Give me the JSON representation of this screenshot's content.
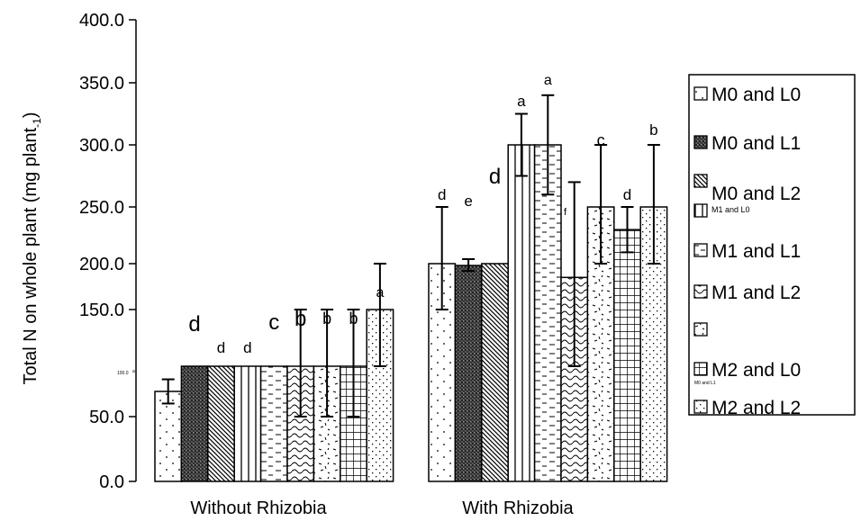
{
  "chart_data": {
    "type": "bar",
    "title": "",
    "xlabel": "",
    "ylabel": "Total N on whole plant (mg plant",
    "ylabel_sub": "-1",
    "ylabel_close": ")",
    "ylim": [
      0,
      400
    ],
    "yticks": [
      "0.0",
      "50.0",
      "150.0",
      "200.0",
      "250.0",
      "300.0",
      "350.0",
      "400.0"
    ],
    "categories": [
      "Without Rhizobia",
      "With Rhizobia"
    ],
    "series": [
      {
        "name": "M0 and L0",
        "values": [
          75,
          200
        ],
        "errors": [
          12,
          50
        ],
        "labels": [
          "",
          "d"
        ],
        "pattern": "dots"
      },
      {
        "name": "M0 and L1",
        "values": [
          100,
          198
        ],
        "errors": [
          0,
          6
        ],
        "labels": [
          "d",
          "e"
        ],
        "pattern": "crosshatch"
      },
      {
        "name": "M0 and L2",
        "values": [
          100,
          200
        ],
        "errors": [
          0,
          0
        ],
        "labels": [
          "d",
          "d"
        ],
        "pattern": "diag"
      },
      {
        "name": "M1 and L0",
        "values": [
          100,
          300
        ],
        "errors": [
          0,
          25
        ],
        "labels": [
          "d",
          "a"
        ],
        "pattern": "vlines"
      },
      {
        "name": "M1 and L1",
        "values": [
          100,
          300
        ],
        "errors": [
          0,
          40
        ],
        "labels": [
          "c",
          "a"
        ],
        "pattern": "dashes"
      },
      {
        "name": "M1 and L2",
        "values": [
          100,
          185
        ],
        "errors": [
          50,
          85
        ],
        "labels": [
          "b",
          ""
        ],
        "pattern": "wave"
      },
      {
        "name": "",
        "values": [
          100,
          250
        ],
        "errors": [
          50,
          50
        ],
        "labels": [
          "b",
          "c"
        ],
        "pattern": "confetti"
      },
      {
        "name": "M2 and L0",
        "values": [
          100,
          230
        ],
        "errors": [
          50,
          20
        ],
        "labels": [
          "b",
          "d"
        ],
        "pattern": "grid"
      },
      {
        "name": "M2 and L2",
        "values": [
          150,
          250
        ],
        "errors": [
          50,
          50
        ],
        "labels": [
          "a",
          "b"
        ],
        "pattern": "sparse"
      }
    ],
    "annotations": {
      "tiny_left": "100.0",
      "tiny_left2": "a",
      "tiny_legend": "M0 and L1",
      "stray": "f"
    },
    "legend_position": "right"
  }
}
